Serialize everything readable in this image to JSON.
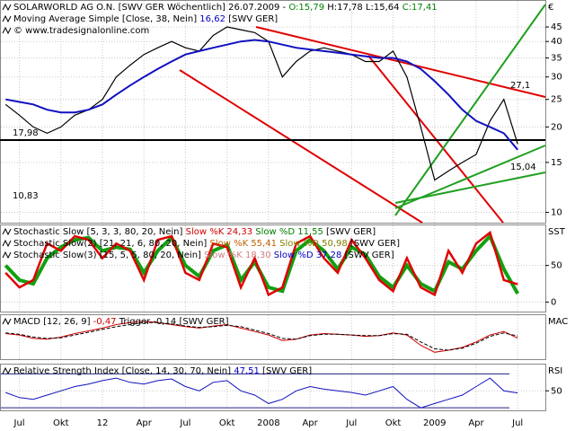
{
  "chart_data": [
    {
      "type": "line",
      "log": true,
      "ylim": [
        9.2,
        56
      ],
      "yticks": [
        10,
        15,
        20,
        25,
        30,
        35,
        40,
        45
      ],
      "xlim": [
        4.6,
        44
      ],
      "axis_label": "€",
      "headers": [
        [
          {
            "text": "SOLARWORLD AG O.N. [SWV GER  Wöchentlich] 26.07.2009 - ",
            "color": "#000"
          },
          {
            "text": "O:15,79",
            "color": "#008000"
          },
          {
            "text": " H:17,78 L:15,64 ",
            "color": "#000"
          },
          {
            "text": "C:17,41",
            "color": "#008000"
          }
        ],
        [
          {
            "text": "Moving Average Simple [Close, 38, Nein] ",
            "color": "#000"
          },
          {
            "text": "16,62",
            "color": "#0000c0"
          },
          {
            "text": " [SWV GER]",
            "color": "#000"
          }
        ],
        [
          {
            "text": "© www.tradesignalonline.com",
            "color": "#000"
          }
        ]
      ],
      "annotations": [
        {
          "text": "17,98",
          "color": "#000"
        },
        {
          "text": "10,83",
          "color": "#0000c0"
        },
        {
          "text": "27,1",
          "color": "#d00000"
        },
        {
          "text": "15,04",
          "color": "#008000"
        }
      ],
      "x": [
        5,
        6,
        7,
        8,
        9,
        10,
        11,
        12,
        13,
        14,
        15,
        16,
        17,
        18,
        19,
        20,
        21,
        22,
        23,
        24,
        25,
        26,
        27,
        28,
        29,
        30,
        31,
        32,
        33,
        34,
        35,
        36,
        37,
        38,
        39,
        40,
        41,
        42
      ],
      "series": [
        {
          "name": "Close",
          "color": "#000",
          "width": 1.2,
          "values": [
            24,
            22,
            20,
            19,
            20,
            22,
            23,
            25,
            30,
            33,
            36,
            38,
            40,
            38,
            37,
            42,
            45,
            44,
            43,
            40,
            30,
            34,
            37,
            38,
            37,
            36,
            34,
            34,
            37,
            30,
            20,
            13,
            14,
            15,
            16,
            21,
            25,
            17.41
          ]
        },
        {
          "name": "Moving Average Simple",
          "color": "#1010c0",
          "width": 2,
          "values": [
            25,
            24.5,
            24,
            23,
            22.5,
            22.5,
            23,
            24,
            26,
            28,
            30,
            32,
            34,
            36,
            37,
            38,
            39,
            40,
            40.5,
            40,
            39,
            38,
            37.5,
            37,
            36.5,
            36,
            35.5,
            35,
            35,
            34,
            32,
            29,
            26,
            23,
            21,
            20,
            19,
            16.62
          ]
        }
      ]
    },
    {
      "type": "line",
      "ylim": [
        -13,
        106
      ],
      "yticks": [
        0,
        50
      ],
      "xlim": [
        4.6,
        44
      ],
      "axis_label": "SST",
      "headers": [
        [
          {
            "text": "Stochastic Slow [5, 3, 3, 80, 20, Nein] ",
            "color": "#000"
          },
          {
            "text": "Slow %K 24,33",
            "color": "#d00000"
          },
          {
            "text": " Slow %D 11,55",
            "color": "#008000"
          },
          {
            "text": " [SWV GER]",
            "color": "#000"
          }
        ],
        [
          {
            "text": "Stochastic Slow(2) [21, 21, 6, 80, 20, Nein] ",
            "color": "#000"
          },
          {
            "text": "Slow %K 55,41",
            "color": "#c06000"
          },
          {
            "text": " Slow %D 50,98",
            "color": "#808000"
          },
          {
            "text": " [SWV GER]",
            "color": "#000"
          }
        ],
        [
          {
            "text": "Stochastic Slow(3) [15, 5, 5, 80, 20, Nein] ",
            "color": "#000"
          },
          {
            "text": "Slow %K 18,30",
            "color": "#d08080"
          },
          {
            "text": " Slow %D 37,28",
            "color": "#0000c0"
          },
          {
            "text": " [SWV GER]",
            "color": "#000"
          }
        ]
      ],
      "x": [
        5,
        6,
        7,
        8,
        9,
        10,
        11,
        12,
        13,
        14,
        15,
        16,
        17,
        18,
        19,
        20,
        21,
        22,
        23,
        24,
        25,
        26,
        27,
        28,
        29,
        30,
        31,
        32,
        33,
        34,
        35,
        36,
        37,
        38,
        39,
        40,
        41,
        42
      ],
      "series": [
        {
          "name": "Slow %D",
          "color": "#10a010",
          "width": 4,
          "values": [
            50,
            30,
            25,
            60,
            75,
            85,
            88,
            70,
            75,
            72,
            40,
            70,
            88,
            50,
            35,
            70,
            78,
            30,
            55,
            20,
            15,
            70,
            85,
            70,
            45,
            75,
            65,
            35,
            20,
            50,
            25,
            15,
            55,
            45,
            70,
            90,
            45,
            11.55
          ]
        },
        {
          "name": "Slow %K",
          "color": "#e00000",
          "width": 2.5,
          "values": [
            40,
            20,
            30,
            80,
            70,
            90,
            85,
            60,
            80,
            70,
            30,
            85,
            90,
            40,
            30,
            80,
            75,
            20,
            60,
            10,
            20,
            80,
            90,
            60,
            40,
            85,
            60,
            30,
            15,
            60,
            20,
            10,
            70,
            40,
            80,
            95,
            30,
            24.33
          ]
        }
      ]
    },
    {
      "type": "line",
      "ylim": [
        -3.5,
        3
      ],
      "xlim": [
        4.6,
        44
      ],
      "axis_label": "MAC",
      "headers": [
        [
          {
            "text": "MACD [12, 26, 9] ",
            "color": "#000"
          },
          {
            "text": "-0,47",
            "color": "#d00000"
          },
          {
            "text": " Trigger -0,14",
            "color": "#000"
          },
          {
            "text": " [SWV GER]",
            "color": "#000"
          }
        ]
      ],
      "x": [
        5,
        6,
        7,
        8,
        9,
        10,
        11,
        12,
        13,
        14,
        15,
        16,
        17,
        18,
        19,
        20,
        21,
        22,
        23,
        24,
        25,
        26,
        27,
        28,
        29,
        30,
        31,
        32,
        33,
        34,
        35,
        36,
        37,
        38,
        39,
        40,
        41,
        42
      ],
      "series": [
        {
          "name": "MACD",
          "color": "#d00000",
          "width": 1,
          "values": [
            0.2,
            0,
            -0.5,
            -0.6,
            -0.3,
            0.2,
            0.6,
            1,
            1.5,
            1.8,
            2,
            1.8,
            1.5,
            1.2,
            1,
            1.3,
            1.5,
            1,
            0.5,
            0,
            -0.8,
            -0.6,
            0,
            0.2,
            0.1,
            0,
            -0.2,
            -0.1,
            0.3,
            0,
            -1.5,
            -2.5,
            -2.2,
            -1.8,
            -1,
            0,
            0.5,
            -0.47
          ]
        },
        {
          "name": "Trigger",
          "color": "#000",
          "width": 1,
          "dash": true,
          "values": [
            0.3,
            0.1,
            -0.3,
            -0.5,
            -0.4,
            0,
            0.4,
            0.8,
            1.2,
            1.5,
            1.8,
            1.8,
            1.6,
            1.3,
            1.1,
            1.2,
            1.4,
            1.2,
            0.7,
            0.2,
            -0.5,
            -0.6,
            -0.1,
            0.1,
            0.1,
            0,
            -0.1,
            -0.1,
            0.2,
            0.1,
            -1,
            -2,
            -2.2,
            -1.9,
            -1.2,
            -0.2,
            0.3,
            -0.14
          ]
        }
      ]
    },
    {
      "type": "line",
      "ylim": [
        27,
        82
      ],
      "yticks": [
        50
      ],
      "levels": [
        30,
        70
      ],
      "xlim": [
        4.6,
        44
      ],
      "axis_label": "RSI",
      "headers": [
        [
          {
            "text": "Relative Strength Index [Close, 14, 30, 70, Nein] ",
            "color": "#000"
          },
          {
            "text": "47,51",
            "color": "#0000c0"
          },
          {
            "text": " [SWV GER]",
            "color": "#000"
          }
        ]
      ],
      "x": [
        5,
        6,
        7,
        8,
        9,
        10,
        11,
        12,
        13,
        14,
        15,
        16,
        17,
        18,
        19,
        20,
        21,
        22,
        23,
        24,
        25,
        26,
        27,
        28,
        29,
        30,
        31,
        32,
        33,
        34,
        35,
        36,
        37,
        38,
        39,
        40,
        41,
        42
      ],
      "series": [
        {
          "name": "RSI",
          "color": "#1010c0",
          "width": 1,
          "values": [
            48,
            42,
            40,
            45,
            50,
            55,
            58,
            62,
            65,
            60,
            58,
            62,
            64,
            55,
            50,
            60,
            62,
            50,
            45,
            35,
            40,
            50,
            55,
            52,
            50,
            48,
            45,
            50,
            55,
            40,
            30,
            35,
            40,
            45,
            55,
            65,
            50,
            47.51
          ]
        }
      ],
      "xticks": [
        {
          "value": 6,
          "label": "Jul"
        },
        {
          "value": 9,
          "label": "Okt"
        },
        12,
        {
          "value": 15,
          "label": "Apr"
        },
        {
          "value": 18,
          "label": "Jul"
        },
        {
          "value": 21,
          "label": "Okt"
        },
        {
          "value": 24,
          "label": "2008"
        },
        {
          "value": 27,
          "label": "Apr"
        },
        {
          "value": 30,
          "label": "Jul"
        },
        {
          "value": 33,
          "label": "Okt"
        },
        {
          "value": 36,
          "label": "2009"
        },
        {
          "value": 39,
          "label": "Apr"
        },
        {
          "value": 42,
          "label": "Jul"
        }
      ]
    }
  ]
}
